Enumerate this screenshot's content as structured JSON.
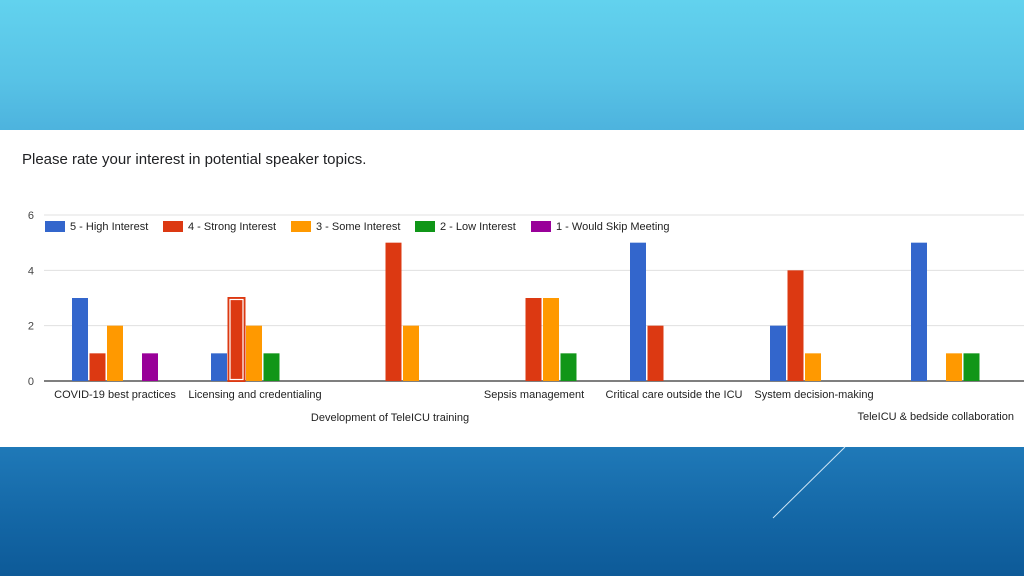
{
  "colors": {
    "high": "#3366cc",
    "strong": "#dc3912",
    "some": "#ff9900",
    "low": "#109618",
    "skip": "#990099",
    "gridline": "#e0e0e0",
    "axis_text": "#444444"
  },
  "chart_data": {
    "type": "bar",
    "title": "Please rate your interest in potential speaker topics.",
    "xlabel": "",
    "ylabel": "",
    "ylim": [
      0,
      6
    ],
    "yticks": [
      "0",
      "2",
      "4",
      "6"
    ],
    "grid": true,
    "legend_position": "top",
    "categories": [
      "COVID-19 best practices",
      "Licensing and credentialing",
      "Development of TeleICU training",
      "Sepsis management",
      "Critical care outside the ICU",
      "System decision-making",
      "TeleICU & bedside collaboration"
    ],
    "series": [
      {
        "name": "5 - High Interest",
        "color": "#3366cc",
        "values": [
          3,
          1,
          0,
          0,
          5,
          2,
          5
        ]
      },
      {
        "name": "4 - Strong Interest",
        "color": "#dc3912",
        "values": [
          1,
          3,
          5,
          3,
          2,
          4,
          0
        ]
      },
      {
        "name": "3 - Some Interest",
        "color": "#ff9900",
        "values": [
          2,
          2,
          2,
          3,
          0,
          1,
          1
        ]
      },
      {
        "name": "2 - Low Interest",
        "color": "#109618",
        "values": [
          0,
          1,
          0,
          1,
          0,
          0,
          1
        ]
      },
      {
        "name": "1 - Would Skip Meeting",
        "color": "#990099",
        "values": [
          1,
          0,
          0,
          0,
          0,
          0,
          0
        ]
      }
    ],
    "highlighted_bar": {
      "category": "Licensing and credentialing",
      "series": "4 - Strong Interest"
    }
  }
}
